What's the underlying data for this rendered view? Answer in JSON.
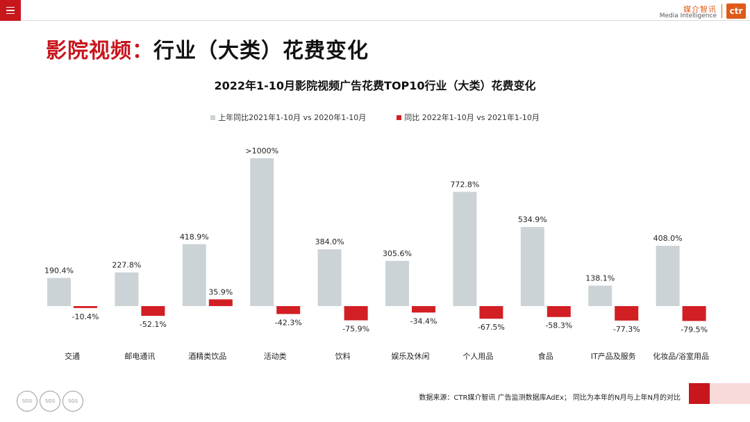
{
  "header": {
    "logo_cn": "媒介智讯",
    "logo_en": "Media Intelligence",
    "logo_mark": "ctr"
  },
  "page": {
    "title_red": "影院视频：",
    "title_black": "行业（大类）花费变化"
  },
  "colors": {
    "gray_series": "#ccd3d6",
    "red_series": "#d21f24",
    "accent": "#c8161d"
  },
  "chart_data": {
    "type": "bar",
    "title": "2022年1-10月影院视频广告花费TOP10行业（大类）花费变化",
    "categories": [
      "交通",
      "邮电通讯",
      "酒精类饮品",
      "活动类",
      "饮料",
      "娱乐及休闲",
      "个人用品",
      "食品",
      "IT产品及服务",
      "化妆品/浴室用品"
    ],
    "series": [
      {
        "name": "上年同比2021年1-10月  vs  2020年1-10月",
        "values": [
          190.4,
          227.8,
          418.9,
          1000,
          384.0,
          305.6,
          772.8,
          534.9,
          138.1,
          408.0
        ],
        "labels": [
          "190.4%",
          "227.8%",
          "418.9%",
          ">1000%",
          "384.0%",
          "305.6%",
          "772.8%",
          "534.9%",
          "138.1%",
          "408.0%"
        ]
      },
      {
        "name": "同比 2022年1-10月  vs  2021年1-10月",
        "values": [
          -10.4,
          -52.1,
          35.9,
          -42.3,
          -75.9,
          -34.4,
          -67.5,
          -58.3,
          -77.3,
          -79.5
        ],
        "labels": [
          "-10.4%",
          "-52.1%",
          "35.9%",
          "-42.3%",
          "-75.9%",
          "-34.4%",
          "-67.5%",
          "-58.3%",
          "-77.3%",
          "-79.5%"
        ]
      }
    ],
    "legend_position": "top",
    "grid": false
  },
  "footer": {
    "source": "数据来源：CTR媒介智讯 广告监测数据库AdEx； 同比为本年的N月与上年N月的对比",
    "badge_text": "SGS"
  }
}
